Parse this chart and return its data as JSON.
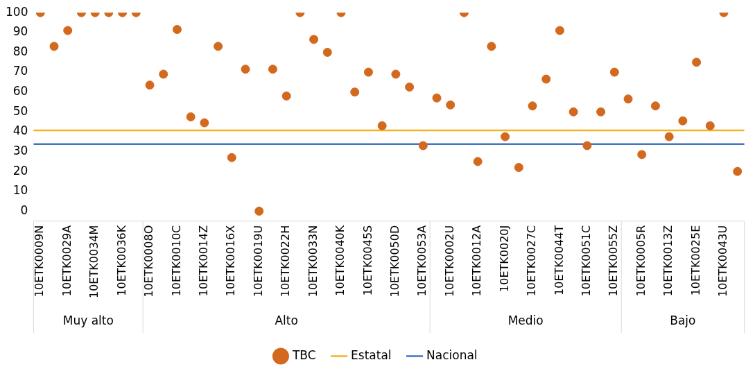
{
  "chart_data": {
    "type": "scatter",
    "categories": [
      "10ETK0009N",
      null,
      "10ETK0029A",
      null,
      "10ETK0034M",
      null,
      "10ETK0036K",
      null,
      "10ETK0008O",
      null,
      "10ETK0010C",
      null,
      "10ETK0014Z",
      null,
      "10ETK0016X",
      null,
      "10ETK0019U",
      null,
      "10ETK0022H",
      null,
      "10ETK0033N",
      null,
      "10ETK0040K",
      null,
      "10ETK0045S",
      null,
      "10ETK0050D",
      null,
      "10ETK0053A",
      null,
      "10ETK0002U",
      null,
      "10ETK0012A",
      null,
      "10ETK0020J",
      null,
      "10ETK0027C",
      null,
      "10ETK0044T",
      null,
      "10ETK0051C",
      null,
      "10ETK0055Z",
      null,
      "10ETK0005R",
      null,
      "10ETK0013Z",
      null,
      "10ETK0025E",
      null,
      "10ETK0043U",
      null
    ],
    "series": [
      {
        "name": "TBC",
        "color": "#d2691e",
        "values": [
          100,
          83,
          91,
          100,
          100,
          100,
          100,
          100,
          63.5,
          69,
          91.5,
          47.5,
          44.5,
          83,
          27,
          71.5,
          0,
          71.5,
          58,
          100,
          86.5,
          80,
          100,
          60,
          70,
          43,
          69,
          62.5,
          33,
          57,
          53.5,
          100,
          25,
          83,
          37.5,
          22,
          53,
          66.5,
          91,
          50,
          33,
          50,
          70,
          56.5,
          28.5,
          53,
          37.5,
          45.5,
          75,
          43,
          100,
          20
        ]
      }
    ],
    "ref_lines": [
      {
        "axis": "y",
        "value": 40.7,
        "label": "Estatal",
        "color": "#f5b324"
      },
      {
        "axis": "y",
        "value": 33.8,
        "label": "Nacional",
        "color": "#4472c4"
      }
    ],
    "annotations": [
      "Muy alto",
      "Alto",
      "Medio",
      "Bajo"
    ],
    "ylim": [
      -5,
      100
    ],
    "yticks": [
      0,
      10,
      20,
      30,
      40,
      50,
      60,
      70,
      80,
      90,
      100
    ],
    "marker": "circle",
    "legend": "bottom",
    "grid": false
  }
}
